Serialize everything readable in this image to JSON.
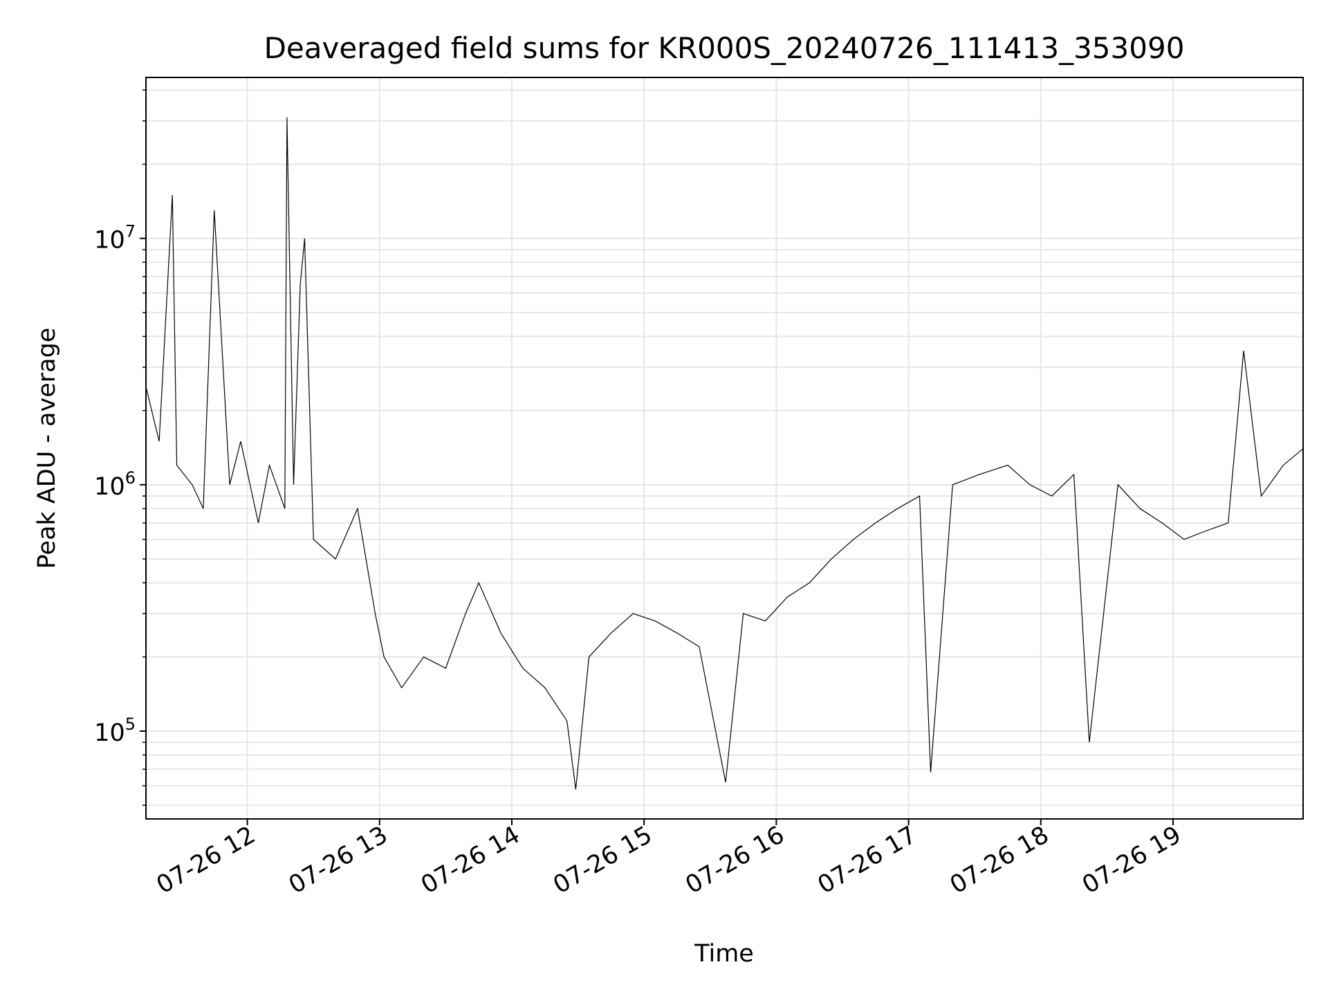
{
  "chart_data": {
    "type": "line",
    "title": "Deaveraged field sums for KR000S_20240726_111413_353090",
    "xlabel": "Time",
    "ylabel": "Peak ADU - average",
    "yscale": "log",
    "ylim": [
      44000,
      45000000
    ],
    "xlim": [
      "07-26 11:14",
      "07-26 19:59"
    ],
    "x_tick_labels": [
      "07-26 12",
      "07-26 13",
      "07-26 14",
      "07-26 15",
      "07-26 16",
      "07-26 17",
      "07-26 18",
      "07-26 19"
    ],
    "x_ticks": [
      "07-26 12:00",
      "07-26 13:00",
      "07-26 14:00",
      "07-26 15:00",
      "07-26 16:00",
      "07-26 17:00",
      "07-26 18:00",
      "07-26 19:00"
    ],
    "y_tick_labels": [
      {
        "base": "10",
        "exp": "5",
        "value": 100000
      },
      {
        "base": "10",
        "exp": "6",
        "value": 1000000
      },
      {
        "base": "10",
        "exp": "7",
        "value": 10000000
      }
    ],
    "grid": true,
    "line_color": "#000000",
    "grid_color": "#e6e6e6",
    "series": [
      {
        "values_note_hidden": false,
        "x": [
          "07-26 11:14",
          "07-26 11:20",
          "07-26 11:26",
          "07-26 11:28",
          "07-26 11:35",
          "07-26 11:40",
          "07-26 11:45",
          "07-26 11:52",
          "07-26 11:57",
          "07-26 12:05",
          "07-26 12:10",
          "07-26 12:17",
          "07-26 12:18",
          "07-26 12:21",
          "07-26 12:24",
          "07-26 12:26",
          "07-26 12:30",
          "07-26 12:40",
          "07-26 12:50",
          "07-26 12:58",
          "07-26 13:02",
          "07-26 13:10",
          "07-26 13:20",
          "07-26 13:30",
          "07-26 13:39",
          "07-26 13:45",
          "07-26 13:55",
          "07-26 14:05",
          "07-26 14:15",
          "07-26 14:25",
          "07-26 14:29",
          "07-26 14:35",
          "07-26 14:45",
          "07-26 14:55",
          "07-26 15:05",
          "07-26 15:15",
          "07-26 15:25",
          "07-26 15:37",
          "07-26 15:45",
          "07-26 15:55",
          "07-26 16:05",
          "07-26 16:15",
          "07-26 16:25",
          "07-26 16:35",
          "07-26 16:45",
          "07-26 16:55",
          "07-26 17:05",
          "07-26 17:10",
          "07-26 17:20",
          "07-26 17:32",
          "07-26 17:45",
          "07-26 17:55",
          "07-26 18:05",
          "07-26 18:15",
          "07-26 18:22",
          "07-26 18:35",
          "07-26 18:45",
          "07-26 18:55",
          "07-26 19:05",
          "07-26 19:15",
          "07-26 19:25",
          "07-26 19:32",
          "07-26 19:40",
          "07-26 19:50",
          "07-26 19:59"
        ],
        "y": [
          2500000,
          1500000,
          15000000,
          1200000,
          1000000,
          800000,
          13000000,
          1000000,
          1500000,
          700000,
          1200000,
          800000,
          31000000,
          1000000,
          6500000,
          10000000,
          600000,
          500000,
          800000,
          300000,
          200000,
          150000,
          200000,
          180000,
          300000,
          400000,
          250000,
          180000,
          150000,
          110000,
          58000,
          200000,
          250000,
          300000,
          280000,
          250000,
          220000,
          62000,
          300000,
          280000,
          350000,
          400000,
          500000,
          600000,
          700000,
          800000,
          900000,
          68000,
          1000000,
          1100000,
          1200000,
          1000000,
          900000,
          1100000,
          90000,
          1000000,
          800000,
          700000,
          600000,
          650000,
          700000,
          3500000,
          900000,
          1200000,
          1400000
        ]
      }
    ]
  }
}
